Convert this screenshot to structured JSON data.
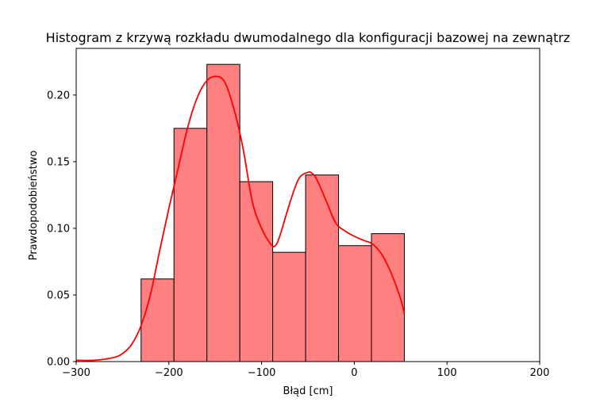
{
  "chart_data": {
    "type": "bar",
    "title": "Histogram z krzywą rozkładu dwumodalnego dla konfiguracji bazowej na zewnątrz",
    "xlabel": "Błąd [cm]",
    "ylabel": "Prawdopodobieństwo",
    "xlim": [
      -300,
      200
    ],
    "ylim": [
      0,
      0.235
    ],
    "xticks": [
      -300,
      -200,
      -100,
      0,
      100,
      200
    ],
    "xtick_labels": [
      "−300",
      "−200",
      "−100",
      "0",
      "100",
      "200"
    ],
    "yticks": [
      0,
      0.05,
      0.1,
      0.15,
      0.2
    ],
    "ytick_labels": [
      "0.00",
      "0.05",
      "0.10",
      "0.15",
      "0.20"
    ],
    "bins": [
      {
        "x0": -230,
        "x1": -194.5,
        "value": 0.062
      },
      {
        "x0": -194.5,
        "x1": -159,
        "value": 0.175
      },
      {
        "x0": -159,
        "x1": -123.5,
        "value": 0.223
      },
      {
        "x0": -123.5,
        "x1": -88,
        "value": 0.135
      },
      {
        "x0": -88,
        "x1": -52.5,
        "value": 0.082
      },
      {
        "x0": -52.5,
        "x1": -17,
        "value": 0.14
      },
      {
        "x0": -17,
        "x1": 18.5,
        "value": 0.087
      },
      {
        "x0": 18.5,
        "x1": 54,
        "value": 0.096
      }
    ],
    "kde": {
      "x": [
        -300,
        -280,
        -260,
        -250,
        -240,
        -230,
        -220,
        -210,
        -200,
        -190,
        -180,
        -170,
        -160,
        -150,
        -140,
        -130,
        -120,
        -110,
        -100,
        -90,
        -85,
        -80,
        -70,
        -60,
        -50,
        -45,
        -40,
        -30,
        -20,
        -10,
        0,
        10,
        20,
        30,
        40,
        50,
        54
      ],
      "y": [
        0.001,
        0.001,
        0.003,
        0.006,
        0.013,
        0.027,
        0.05,
        0.083,
        0.115,
        0.145,
        0.175,
        0.197,
        0.21,
        0.214,
        0.21,
        0.19,
        0.16,
        0.12,
        0.1,
        0.088,
        0.087,
        0.095,
        0.118,
        0.137,
        0.142,
        0.141,
        0.136,
        0.12,
        0.104,
        0.098,
        0.094,
        0.091,
        0.088,
        0.08,
        0.066,
        0.047,
        0.036
      ]
    },
    "grid": false,
    "colors": {
      "bar_fill": "#ff8080",
      "bar_edge": "#000000",
      "kde_line": "#ff0000"
    }
  }
}
